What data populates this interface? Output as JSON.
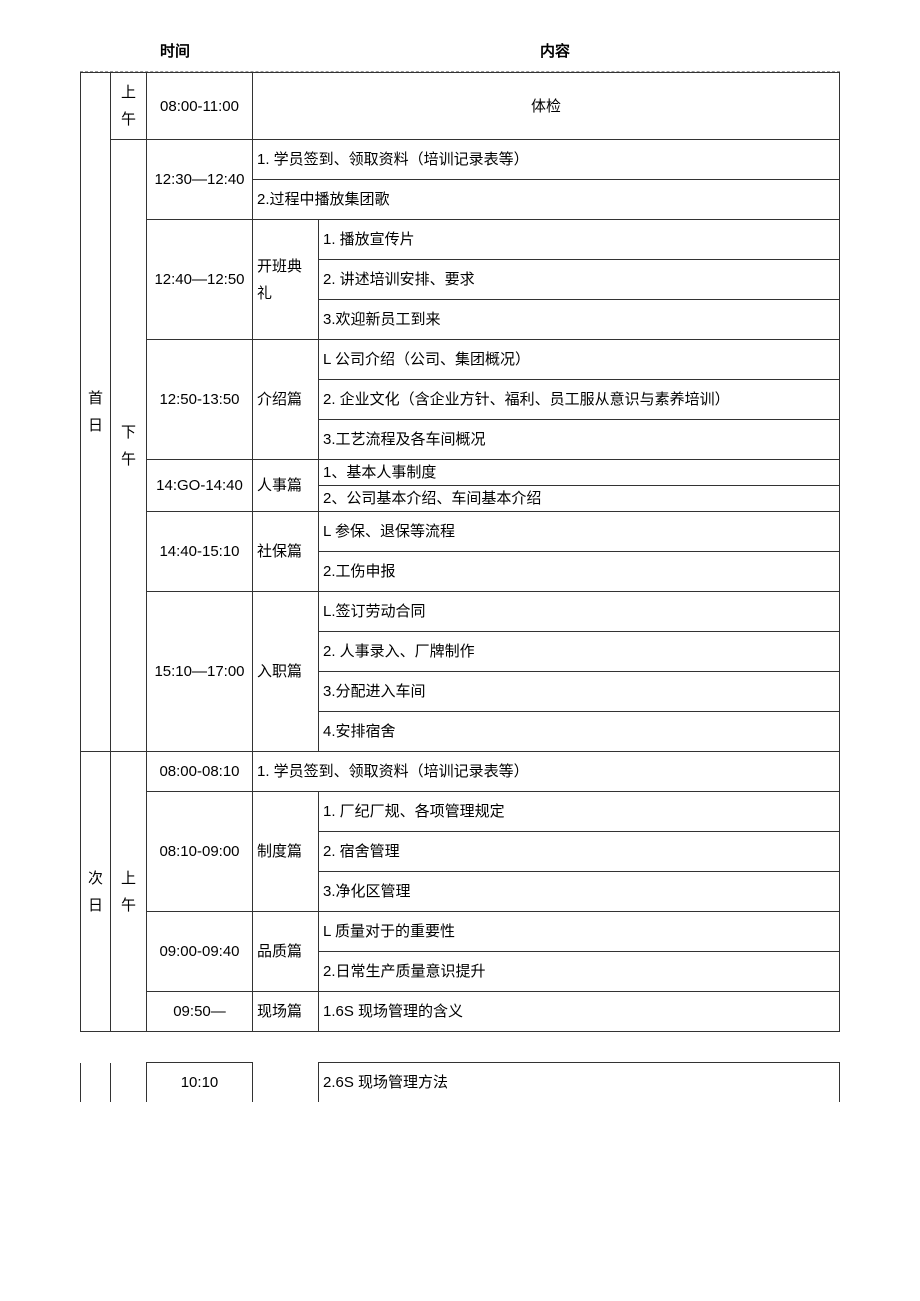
{
  "headers": {
    "time": "时间",
    "content": "内容"
  },
  "day1": {
    "label": "首日",
    "morning": {
      "period": "上午",
      "time": "08:00-11:00",
      "content": "体检"
    },
    "afternoon": {
      "period": "下午",
      "blocks": [
        {
          "time": "12:30—12:40",
          "items": [
            "1. 学员签到、领取资料（培训记录表等）",
            "2.过程中播放集团歌"
          ]
        },
        {
          "time": "12:40—12:50",
          "section": "开班典礼",
          "items": [
            "1. 播放宣传片",
            "2. 讲述培训安排、要求",
            "3.欢迎新员工到来"
          ]
        },
        {
          "time": "12:50-13:50",
          "section": "介绍篇",
          "items": [
            "L 公司介绍（公司、集团概况）",
            "2. 企业文化（含企业方针、福利、员工服从意识与素养培训）",
            "3.工艺流程及各车间概况"
          ]
        },
        {
          "time": "14:GO-14:40",
          "section": "人事篇",
          "items": [
            "1、基本人事制度",
            "2、公司基本介绍、车间基本介绍"
          ]
        },
        {
          "time": "14:40-15:10",
          "section": "社保篇",
          "items": [
            "L 参保、退保等流程",
            "2.工伤申报"
          ]
        },
        {
          "time": "15:10—17:00",
          "section": "入职篇",
          "items": [
            "L.签订劳动合同",
            "2. 人事录入、厂牌制作",
            "3.分配进入车间",
            "4.安排宿舍"
          ]
        }
      ]
    }
  },
  "day2": {
    "label": "次日",
    "morning": {
      "period": "上午",
      "blocks": [
        {
          "time": "08:00-08:10",
          "items": [
            "1. 学员签到、领取资料（培训记录表等）"
          ]
        },
        {
          "time": "08:10-09:00",
          "section": "制度篇",
          "items": [
            "1. 厂纪厂规、各项管理规定",
            "2. 宿舍管理",
            "3.净化区管理"
          ]
        },
        {
          "time": "09:00-09:40",
          "section": "品质篇",
          "items": [
            "L 质量对于的重要性",
            "2.日常生产质量意识提升"
          ]
        },
        {
          "time": "09:50—",
          "section": "现场篇",
          "items": [
            "1.6S 现场管理的含义"
          ]
        }
      ]
    }
  },
  "secondTable": {
    "time": "10:10",
    "content": "2.6S 现场管理方法"
  }
}
